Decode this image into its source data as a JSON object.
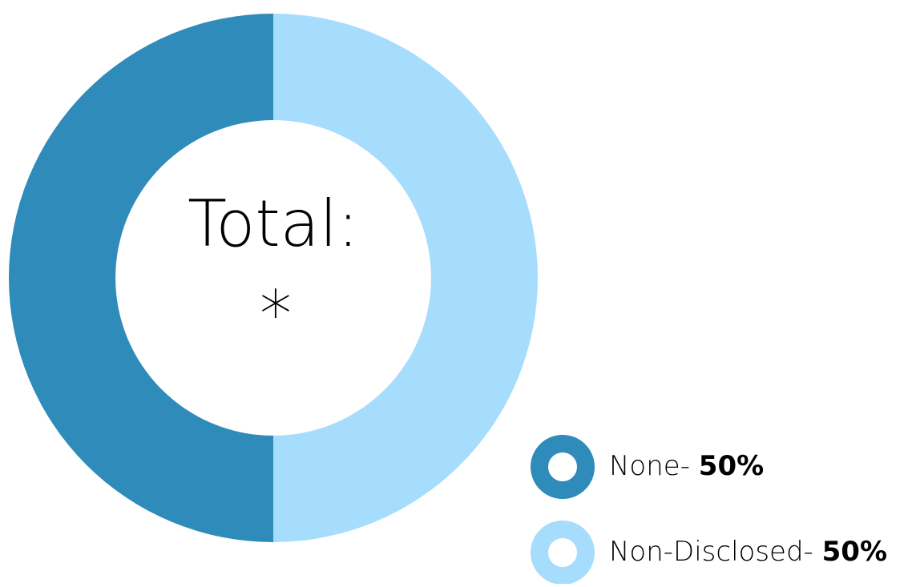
{
  "chart_data": {
    "type": "donut",
    "center_label": "Total:",
    "center_value": "*",
    "categories": [
      "None-",
      "Non-Disclosed-"
    ],
    "values": [
      50,
      50
    ],
    "value_labels": [
      "50%",
      "50%"
    ],
    "colors": [
      "#2e8bba",
      "#a6dcfc"
    ]
  }
}
